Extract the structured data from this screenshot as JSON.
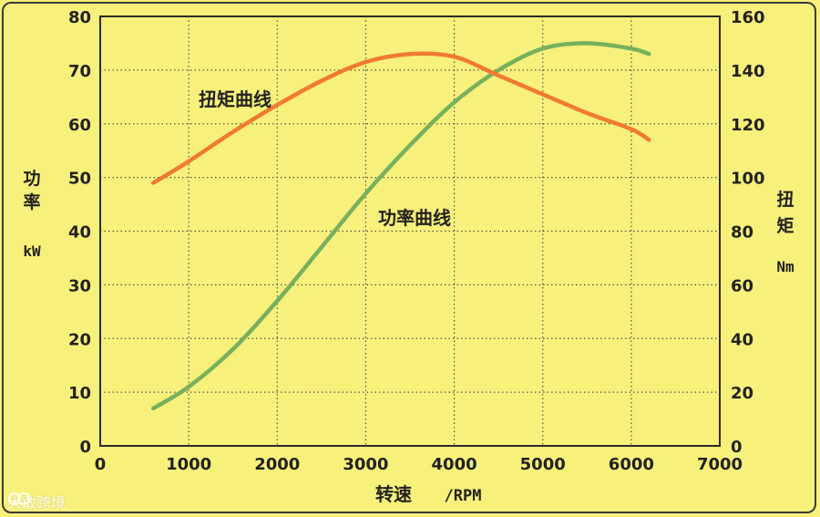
{
  "chart_data": {
    "type": "line",
    "x_axis": {
      "label_main": "转速",
      "label_unit": "/RPM",
      "ticks": [
        0,
        1000,
        2000,
        3000,
        4000,
        5000,
        6000,
        7000
      ],
      "range": [
        0,
        7000
      ]
    },
    "y_left": {
      "label_top": "功",
      "label_bottom": "率",
      "unit": "kW",
      "ticks": [
        0,
        10,
        20,
        30,
        40,
        50,
        60,
        70,
        80
      ],
      "range": [
        0,
        80
      ]
    },
    "y_right": {
      "label_top": "扭",
      "label_bottom": "矩",
      "unit": "Nm",
      "ticks": [
        0,
        20,
        40,
        60,
        80,
        100,
        120,
        140,
        160
      ],
      "range": [
        0,
        160
      ]
    },
    "grid": true,
    "series": [
      {
        "name": "功率曲线",
        "axis": "left",
        "color": "#78b05d",
        "x": [
          600,
          1000,
          1500,
          2000,
          2500,
          3000,
          3500,
          4000,
          4500,
          5000,
          5500,
          6000,
          6200
        ],
        "y": [
          7,
          11,
          18,
          27,
          37,
          47,
          56,
          64,
          70,
          74,
          75,
          74,
          73
        ]
      },
      {
        "name": "扭矩曲线",
        "axis": "right",
        "color": "#f07a32",
        "x": [
          600,
          1000,
          1500,
          2000,
          2500,
          3000,
          3500,
          4000,
          4500,
          5000,
          5500,
          6000,
          6200
        ],
        "y": [
          98,
          106,
          117,
          127,
          136,
          143,
          146,
          145,
          138,
          131,
          124,
          118,
          114
        ]
      }
    ],
    "annotations": [
      {
        "text": "扭矩曲线",
        "series": 1
      },
      {
        "text": "功率曲线",
        "series": 0
      }
    ]
  },
  "watermark": {
    "text": "大敢跨境",
    "icon": "watermark-logo-icon"
  }
}
